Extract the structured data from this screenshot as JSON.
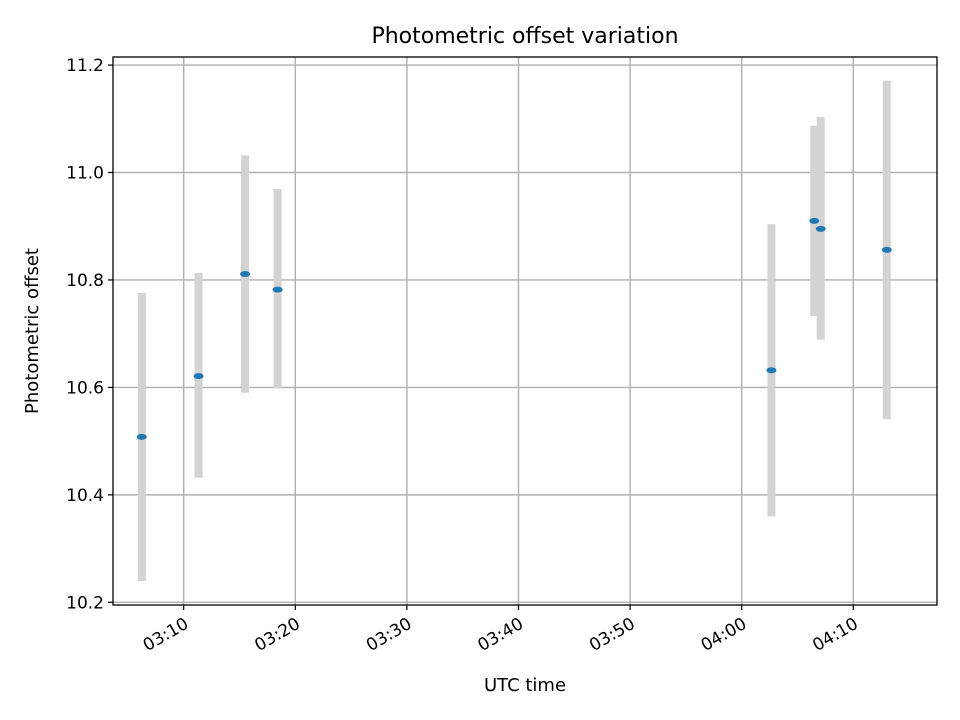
{
  "chart_data": {
    "type": "scatter",
    "title": "Photometric offset variation",
    "xlabel": "UTC time",
    "ylabel": "Photometric offset",
    "x_ticks": [
      "03:10",
      "03:20",
      "03:30",
      "03:40",
      "03:50",
      "04:00",
      "04:10"
    ],
    "x_range": [
      "03:03:40",
      "04:17:30"
    ],
    "y_ticks": [
      10.2,
      10.4,
      10.6,
      10.8,
      11.0,
      11.2
    ],
    "ylim": [
      10.195,
      11.215
    ],
    "grid": true,
    "marker_color": "#1f77b4",
    "errorbar_color": "#d3d3d3",
    "points": [
      {
        "x": "03:06:15",
        "y": 10.508,
        "err_low": 10.24,
        "err_high": 10.776
      },
      {
        "x": "03:11:20",
        "y": 10.621,
        "err_low": 10.432,
        "err_high": 10.813
      },
      {
        "x": "03:15:30",
        "y": 10.811,
        "err_low": 10.59,
        "err_high": 11.032
      },
      {
        "x": "03:18:25",
        "y": 10.782,
        "err_low": 10.598,
        "err_high": 10.969
      },
      {
        "x": "04:02:40",
        "y": 10.632,
        "err_low": 10.36,
        "err_high": 10.904
      },
      {
        "x": "04:06:30",
        "y": 10.91,
        "err_low": 10.733,
        "err_high": 11.087
      },
      {
        "x": "04:07:05",
        "y": 10.895,
        "err_low": 10.689,
        "err_high": 11.103
      },
      {
        "x": "04:13:00",
        "y": 10.856,
        "err_low": 10.541,
        "err_high": 11.171
      }
    ]
  }
}
